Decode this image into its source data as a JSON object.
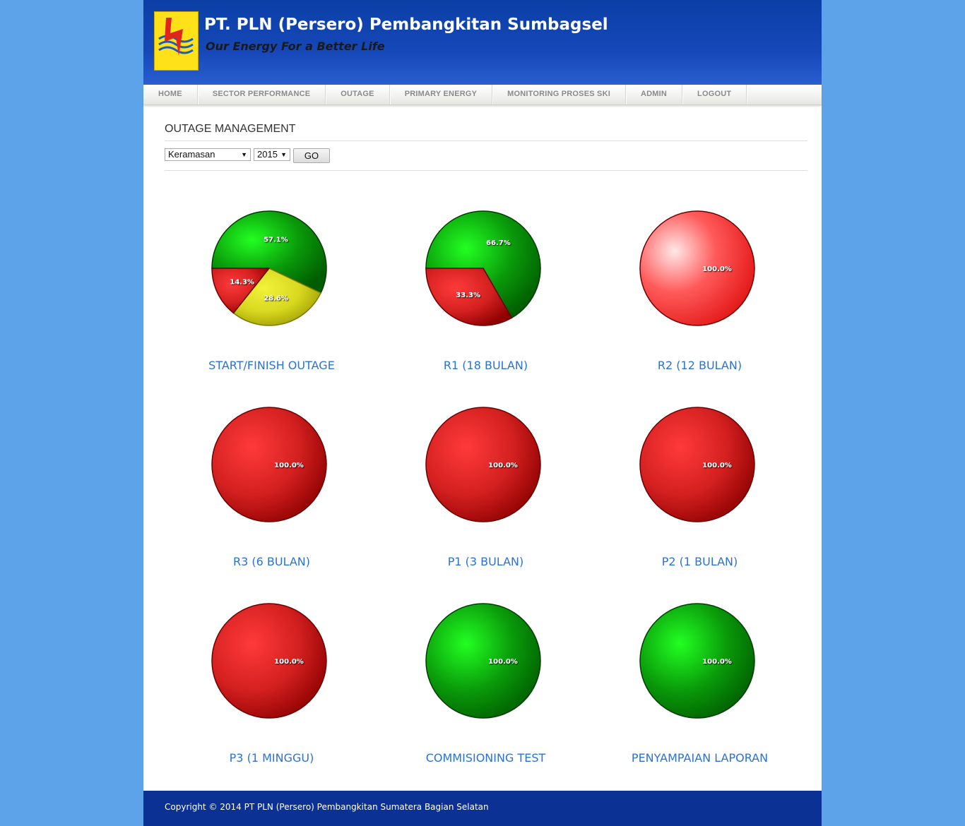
{
  "header": {
    "title": "PT. PLN (Persero) Pembangkitan Sumbagsel",
    "tagline": "Our Energy For a Better Life"
  },
  "nav": {
    "items": [
      "HOME",
      "SECTOR PERFORMANCE",
      "OUTAGE",
      "PRIMARY ENERGY",
      "MONITORING PROSES SKI",
      "ADMIN",
      "LOGOUT"
    ]
  },
  "main": {
    "title": "OUTAGE MANAGEMENT",
    "filters": {
      "unit_selected": "Keramasan",
      "year_selected": "2015",
      "go_label": "GO"
    }
  },
  "colors": {
    "green": "#0a9a0a",
    "red": "#d42020",
    "yellow": "#d8d820",
    "link": "#2a72d8"
  },
  "chart_data": [
    {
      "type": "pie",
      "title": "START/FINISH OUTAGE",
      "slices": [
        {
          "value": 57.1,
          "label": "57.1%",
          "color": "green"
        },
        {
          "value": 28.6,
          "label": "28.6%",
          "color": "yellow"
        },
        {
          "value": 14.3,
          "label": "14.3%",
          "color": "red"
        }
      ]
    },
    {
      "type": "pie",
      "title": "R1 (18 BULAN)",
      "slices": [
        {
          "value": 66.7,
          "label": "66.7%",
          "color": "green"
        },
        {
          "value": 33.3,
          "label": "33.3%",
          "color": "red"
        }
      ]
    },
    {
      "type": "pie",
      "title": "R2 (12 BULAN)",
      "slices": [
        {
          "value": 100.0,
          "label": "100.0%",
          "color": "red"
        }
      ]
    },
    {
      "type": "pie",
      "title": "R3 (6 BULAN)",
      "slices": [
        {
          "value": 100.0,
          "label": "100.0%",
          "color": "red"
        }
      ]
    },
    {
      "type": "pie",
      "title": "P1 (3 BULAN)",
      "slices": [
        {
          "value": 100.0,
          "label": "100.0%",
          "color": "red"
        }
      ]
    },
    {
      "type": "pie",
      "title": "P2 (1 BULAN)",
      "slices": [
        {
          "value": 100.0,
          "label": "100.0%",
          "color": "red"
        }
      ]
    },
    {
      "type": "pie",
      "title": "P3 (1 MINGGU)",
      "slices": [
        {
          "value": 100.0,
          "label": "100.0%",
          "color": "red"
        }
      ]
    },
    {
      "type": "pie",
      "title": "COMMISIONING TEST",
      "slices": [
        {
          "value": 100.0,
          "label": "100.0%",
          "color": "green"
        }
      ]
    },
    {
      "type": "pie",
      "title": "PENYAMPAIAN LAPORAN",
      "slices": [
        {
          "value": 100.0,
          "label": "100.0%",
          "color": "green"
        }
      ]
    }
  ],
  "footer": {
    "copyright": "Copyright © 2014 PT PLN (Persero) Pembangkitan Sumatera Bagian Selatan"
  }
}
